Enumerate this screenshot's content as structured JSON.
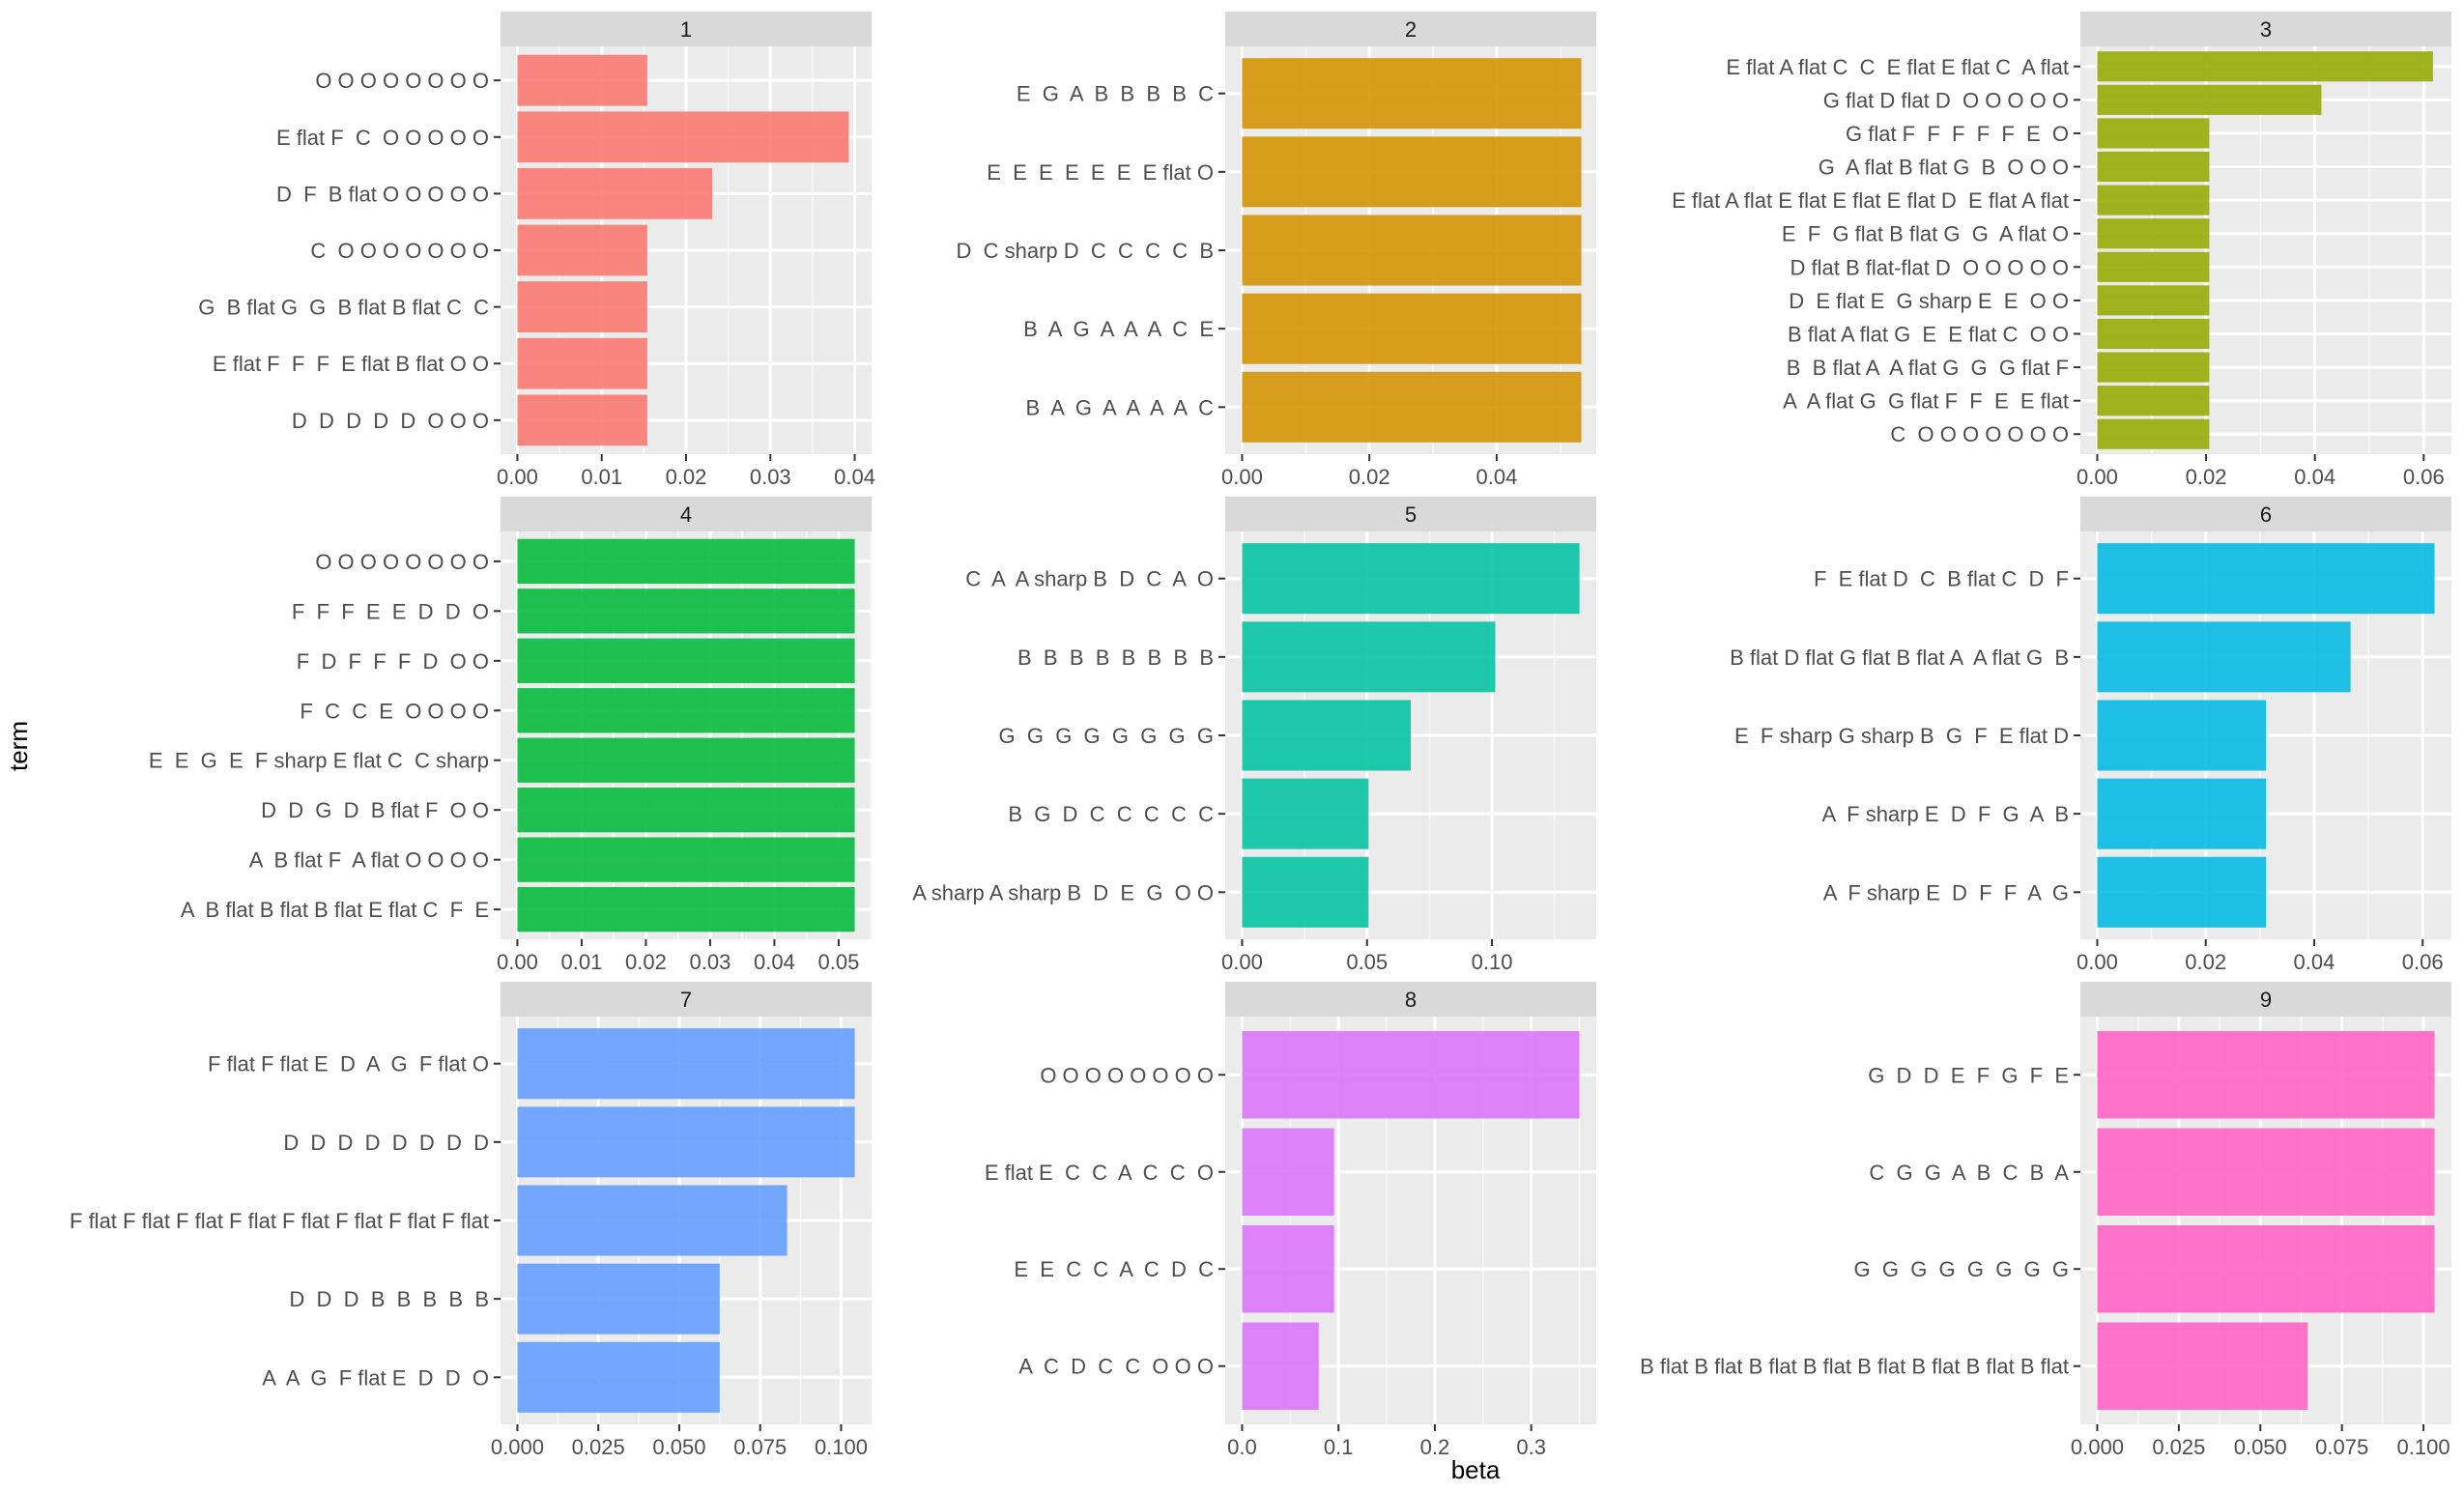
{
  "xlabel": "beta",
  "ylabel": "term",
  "chart_data": [
    {
      "type": "bar",
      "panel": "1",
      "color": "#F8766D",
      "xlim": [
        0,
        0.04
      ],
      "xticks": [
        0,
        0.01,
        0.02,
        0.03,
        0.04
      ],
      "tick_labels": [
        "0.00",
        "0.01",
        "0.02",
        "0.03",
        "0.04"
      ],
      "categories": [
        "O O O O O O O O",
        "E flat F  C  O O O O O",
        "D  F  B flat O O O O O",
        "C  O O O O O O O",
        "G  B flat G  G  B flat B flat C  C",
        "E flat F  F  F  E flat B flat O O",
        "D  D  D  D  D  O O O"
      ],
      "values": [
        0.0154,
        0.0393,
        0.0231,
        0.0154,
        0.0154,
        0.0154,
        0.0154
      ]
    },
    {
      "type": "bar",
      "panel": "2",
      "color": "#D39200",
      "xlim": [
        0,
        0.053
      ],
      "xticks": [
        0,
        0.02,
        0.04
      ],
      "tick_labels": [
        "0.00",
        "0.02",
        "0.04"
      ],
      "categories": [
        "E  G  A  B  B  B  B  C",
        "E  E  E  E  E  E  E flat O",
        "D  C sharp D  C  C  C  C  B",
        "B  A  G  A  A  A  C  E",
        "B  A  G  A  A  A  A  C"
      ],
      "values": [
        0.0533,
        0.0533,
        0.0533,
        0.0533,
        0.0533
      ]
    },
    {
      "type": "bar",
      "panel": "3",
      "color": "#93AA00",
      "xlim": [
        0,
        0.062
      ],
      "xticks": [
        0,
        0.02,
        0.04,
        0.06
      ],
      "tick_labels": [
        "0.00",
        "0.02",
        "0.04",
        "0.06"
      ],
      "categories": [
        "E flat A flat C  C  E flat E flat C  A flat",
        "G flat D flat D  O O O O O",
        "G flat F  F  F  F  F  E  O",
        "G  A flat B flat G  B  O O O",
        "E flat A flat E flat E flat E flat D  E flat A flat",
        "E  F  G flat B flat G  G  A flat O",
        "D flat B flat-flat D  O O O O O",
        "D  E flat E  G sharp E  E  O O",
        "B flat A flat G  E  E flat C  O O",
        "B  B flat A  A flat G  G  G flat F",
        "A  A flat G  G flat F  F  E  E flat",
        "C  O O O O O O O"
      ],
      "values": [
        0.0617,
        0.0412,
        0.0206,
        0.0206,
        0.0206,
        0.0206,
        0.0206,
        0.0206,
        0.0206,
        0.0206,
        0.0206,
        0.0206
      ]
    },
    {
      "type": "bar",
      "panel": "4",
      "color": "#00BA38",
      "xlim": [
        0,
        0.0525
      ],
      "xticks": [
        0,
        0.01,
        0.02,
        0.03,
        0.04,
        0.05
      ],
      "tick_labels": [
        "0.00",
        "0.01",
        "0.02",
        "0.03",
        "0.04",
        "0.05"
      ],
      "categories": [
        "O O O O O O O O",
        "F  F  F  E  E  D  D  O",
        "F  D  F  F  F  D  O O",
        "F  C  C  E  O O O O",
        "E  E  G  E  F sharp E flat C  C sharp",
        "D  D  G  D  B flat F  O O",
        "A  B flat F  A flat O O O O",
        "A  B flat B flat B flat E flat C  F  E"
      ],
      "values": [
        0.0525,
        0.0525,
        0.0525,
        0.0525,
        0.0525,
        0.0525,
        0.0525,
        0.0525
      ]
    },
    {
      "type": "bar",
      "panel": "5",
      "color": "#00C19F",
      "xlim": [
        0,
        0.135
      ],
      "xticks": [
        0,
        0.05,
        0.1
      ],
      "tick_labels": [
        "0.00",
        "0.05",
        "0.10"
      ],
      "categories": [
        "C  A  A sharp B  D  C  A  O",
        "B  B  B  B  B  B  B  B",
        "G  G  G  G  G  G  G  G",
        "B  G  D  C  C  C  C  C",
        "A sharp A sharp B  D  E  G  O O"
      ],
      "values": [
        0.135,
        0.1013,
        0.0675,
        0.0506,
        0.0506
      ]
    },
    {
      "type": "bar",
      "panel": "6",
      "color": "#00B9E3",
      "xlim": [
        0,
        0.0622
      ],
      "xticks": [
        0,
        0.02,
        0.04,
        0.06
      ],
      "tick_labels": [
        "0.00",
        "0.02",
        "0.04",
        "0.06"
      ],
      "categories": [
        "F  E flat D  C  B flat C  D  F",
        "B flat D flat G flat B flat A  A flat G  B",
        "E  F sharp G sharp B  G  F  E flat D",
        "A  F sharp E  D  F  G  A  B",
        "A  F sharp E  D  F  F  A  G"
      ],
      "values": [
        0.0622,
        0.0467,
        0.0311,
        0.0311,
        0.0311
      ]
    },
    {
      "type": "bar",
      "panel": "7",
      "color": "#619CFF",
      "xlim": [
        0,
        0.1042
      ],
      "xticks": [
        0,
        0.025,
        0.05,
        0.075,
        0.1
      ],
      "tick_labels": [
        "0.000",
        "0.025",
        "0.050",
        "0.075",
        "0.100"
      ],
      "categories": [
        "F flat F flat E  D  A  G  F flat O",
        "D  D  D  D  D  D  D  D",
        "F flat F flat F flat F flat F flat F flat F flat F flat",
        "D  D  D  B  B  B  B  B",
        "A  A  G  F flat E  D  D  O"
      ],
      "values": [
        0.1042,
        0.1042,
        0.0833,
        0.0625,
        0.0625
      ]
    },
    {
      "type": "bar",
      "panel": "8",
      "color": "#DB72FB",
      "xlim": [
        0,
        0.35
      ],
      "xticks": [
        0,
        0.1,
        0.2,
        0.3
      ],
      "tick_labels": [
        "0.0",
        "0.1",
        "0.2",
        "0.3"
      ],
      "categories": [
        "O O O O O O O O",
        "E flat E  C  C  A  C  C  O",
        "E  E  C  C  A  C  D  C",
        "A  C  D  C  C  O O O"
      ],
      "values": [
        0.35,
        0.0955,
        0.0955,
        0.0795
      ]
    },
    {
      "type": "bar",
      "panel": "9",
      "color": "#FF61C3",
      "xlim": [
        0,
        0.1034
      ],
      "xticks": [
        0,
        0.025,
        0.05,
        0.075,
        0.1
      ],
      "tick_labels": [
        "0.000",
        "0.025",
        "0.050",
        "0.075",
        "0.100"
      ],
      "categories": [
        "G  D  D  E  F  G  F  E",
        "C  G  G  A  B  C  B  A",
        "G  G  G  G  G  G  G  G",
        "B flat B flat B flat B flat B flat B flat B flat B flat"
      ],
      "values": [
        0.1034,
        0.1034,
        0.1034,
        0.0645
      ]
    }
  ]
}
